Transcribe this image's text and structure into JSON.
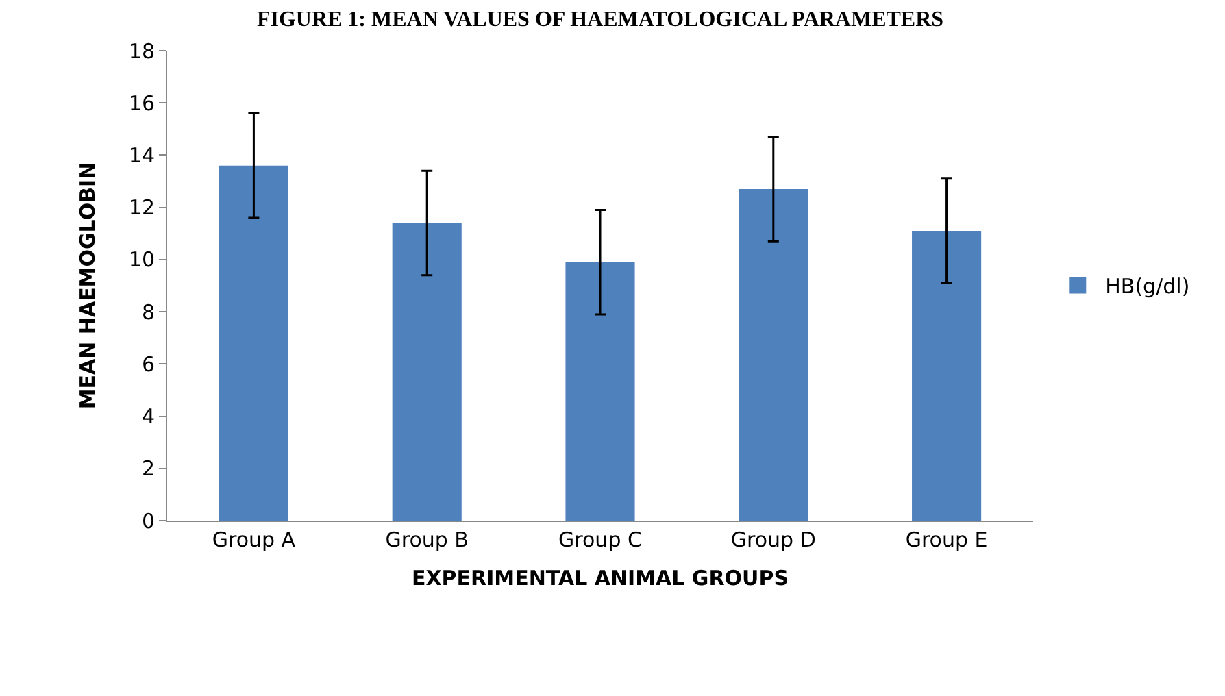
{
  "chart_data": {
    "type": "bar",
    "title": "FIGURE 1: MEAN VALUES OF HAEMATOLOGICAL PARAMETERS",
    "xlabel": "EXPERIMENTAL ANIMAL GROUPS",
    "ylabel": "MEAN HAEMOGLOBIN",
    "categories": [
      "Group A",
      "Group B",
      "Group C",
      "Group D",
      "Group E"
    ],
    "series": [
      {
        "name": "HB(g/dl)",
        "color": "#4f81bd",
        "values": [
          13.6,
          11.4,
          9.9,
          12.7,
          11.1
        ],
        "errors": [
          2,
          2,
          2,
          2,
          2
        ]
      }
    ],
    "ylim": [
      0,
      18
    ],
    "yticks": [
      0,
      2,
      4,
      6,
      8,
      10,
      12,
      14,
      16,
      18
    ],
    "grid": false,
    "legend": "right"
  }
}
